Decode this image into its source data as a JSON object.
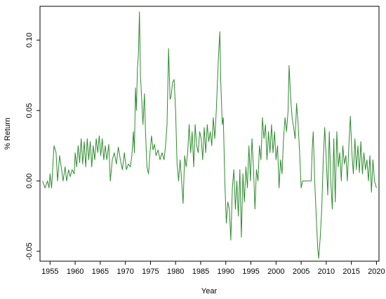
{
  "chart_data": {
    "type": "line",
    "title": "",
    "xlabel": "Year",
    "ylabel": "% Return",
    "xlim": [
      1953,
      2020.5
    ],
    "ylim": [
      -0.057,
      0.124
    ],
    "x_ticks": [
      1955,
      1960,
      1965,
      1970,
      1975,
      1980,
      1985,
      1990,
      1995,
      2000,
      2005,
      2010,
      2015,
      2020
    ],
    "y_ticks": [
      -0.05,
      0.0,
      0.05,
      0.1
    ],
    "y_tick_labels": [
      "-0.05",
      "0.00",
      "0.05",
      "0.10"
    ],
    "grid": false,
    "legend": "none",
    "series": [
      {
        "color": "#2e8b2e",
        "points": [
          [
            1953.5,
            0.0
          ],
          [
            1954.0,
            -0.005
          ],
          [
            1954.5,
            0.0
          ],
          [
            1954.8,
            -0.005
          ],
          [
            1955.0,
            0.005
          ],
          [
            1955.3,
            -0.005
          ],
          [
            1955.8,
            0.025
          ],
          [
            1956.2,
            0.02
          ],
          [
            1956.5,
            0.0
          ],
          [
            1956.9,
            0.018
          ],
          [
            1957.3,
            0.008
          ],
          [
            1957.6,
            0.0
          ],
          [
            1958.0,
            0.01
          ],
          [
            1958.3,
            0.0
          ],
          [
            1958.7,
            0.008
          ],
          [
            1959.0,
            0.003
          ],
          [
            1959.4,
            0.008
          ],
          [
            1959.8,
            0.005
          ],
          [
            1960.0,
            0.02
          ],
          [
            1960.3,
            0.01
          ],
          [
            1960.6,
            0.025
          ],
          [
            1960.9,
            0.013
          ],
          [
            1961.2,
            0.03
          ],
          [
            1961.5,
            0.012
          ],
          [
            1961.8,
            0.028
          ],
          [
            1962.1,
            0.01
          ],
          [
            1962.4,
            0.03
          ],
          [
            1962.7,
            0.015
          ],
          [
            1963.0,
            0.028
          ],
          [
            1963.3,
            0.01
          ],
          [
            1963.6,
            0.025
          ],
          [
            1963.9,
            0.015
          ],
          [
            1964.2,
            0.03
          ],
          [
            1964.5,
            0.02
          ],
          [
            1964.8,
            0.032
          ],
          [
            1965.1,
            0.018
          ],
          [
            1965.4,
            0.03
          ],
          [
            1965.7,
            0.015
          ],
          [
            1966.0,
            0.025
          ],
          [
            1966.3,
            0.015
          ],
          [
            1966.7,
            0.026
          ],
          [
            1967.0,
            0.0
          ],
          [
            1967.4,
            0.015
          ],
          [
            1967.8,
            0.02
          ],
          [
            1968.2,
            0.012
          ],
          [
            1968.6,
            0.024
          ],
          [
            1969.0,
            0.015
          ],
          [
            1969.4,
            0.008
          ],
          [
            1969.8,
            0.02
          ],
          [
            1970.2,
            0.008
          ],
          [
            1970.6,
            0.012
          ],
          [
            1971.0,
            0.01
          ],
          [
            1971.3,
            0.018
          ],
          [
            1971.6,
            0.035
          ],
          [
            1971.8,
            0.02
          ],
          [
            1972.0,
            0.066
          ],
          [
            1972.2,
            0.05
          ],
          [
            1972.4,
            0.08
          ],
          [
            1972.6,
            0.09
          ],
          [
            1972.8,
            0.12
          ],
          [
            1973.0,
            0.075
          ],
          [
            1973.2,
            0.062
          ],
          [
            1973.5,
            0.04
          ],
          [
            1973.8,
            0.062
          ],
          [
            1974.0,
            0.035
          ],
          [
            1974.3,
            0.01
          ],
          [
            1974.6,
            0.005
          ],
          [
            1974.9,
            0.02
          ],
          [
            1975.2,
            0.032
          ],
          [
            1975.5,
            0.022
          ],
          [
            1975.8,
            0.026
          ],
          [
            1976.1,
            0.018
          ],
          [
            1976.5,
            0.022
          ],
          [
            1976.9,
            0.015
          ],
          [
            1977.3,
            0.02
          ],
          [
            1977.7,
            0.015
          ],
          [
            1978.0,
            0.025
          ],
          [
            1978.3,
            0.04
          ],
          [
            1978.6,
            0.094
          ],
          [
            1978.9,
            0.058
          ],
          [
            1979.1,
            0.06
          ],
          [
            1979.4,
            0.07
          ],
          [
            1979.7,
            0.072
          ],
          [
            1980.0,
            0.05
          ],
          [
            1980.3,
            0.012
          ],
          [
            1980.6,
            0.0
          ],
          [
            1980.9,
            0.015
          ],
          [
            1981.2,
            0.0
          ],
          [
            1981.5,
            -0.016
          ],
          [
            1981.8,
            0.018
          ],
          [
            1982.1,
            0.01
          ],
          [
            1982.4,
            0.02
          ],
          [
            1982.7,
            0.04
          ],
          [
            1983.0,
            0.02
          ],
          [
            1983.3,
            0.035
          ],
          [
            1983.6,
            0.01
          ],
          [
            1983.9,
            0.04
          ],
          [
            1984.2,
            0.025
          ],
          [
            1984.5,
            0.02
          ],
          [
            1984.8,
            0.035
          ],
          [
            1985.1,
            0.03
          ],
          [
            1985.4,
            0.015
          ],
          [
            1985.7,
            0.038
          ],
          [
            1986.0,
            0.02
          ],
          [
            1986.3,
            0.04
          ],
          [
            1986.6,
            0.028
          ],
          [
            1986.9,
            0.035
          ],
          [
            1987.2,
            0.025
          ],
          [
            1987.5,
            0.045
          ],
          [
            1987.8,
            0.03
          ],
          [
            1988.1,
            0.05
          ],
          [
            1988.5,
            0.085
          ],
          [
            1988.8,
            0.106
          ],
          [
            1989.0,
            0.07
          ],
          [
            1989.3,
            0.04
          ],
          [
            1989.5,
            0.045
          ],
          [
            1989.8,
            0.0
          ],
          [
            1990.1,
            -0.03
          ],
          [
            1990.4,
            -0.015
          ],
          [
            1990.7,
            -0.02
          ],
          [
            1991.0,
            -0.042
          ],
          [
            1991.3,
            -0.005
          ],
          [
            1991.6,
            0.008
          ],
          [
            1991.9,
            -0.02
          ],
          [
            1992.2,
            0.0
          ],
          [
            1992.5,
            -0.025
          ],
          [
            1992.8,
            0.008
          ],
          [
            1993.1,
            -0.04
          ],
          [
            1993.4,
            0.005
          ],
          [
            1993.7,
            -0.015
          ],
          [
            1994.0,
            0.01
          ],
          [
            1994.3,
            -0.005
          ],
          [
            1994.6,
            0.025
          ],
          [
            1994.9,
            0.0
          ],
          [
            1995.2,
            0.03
          ],
          [
            1995.5,
            0.01
          ],
          [
            1995.8,
            -0.02
          ],
          [
            1996.1,
            0.008
          ],
          [
            1996.4,
            0.0
          ],
          [
            1996.7,
            0.025
          ],
          [
            1997.0,
            0.015
          ],
          [
            1997.3,
            0.045
          ],
          [
            1997.6,
            0.03
          ],
          [
            1997.9,
            0.04
          ],
          [
            1998.2,
            0.015
          ],
          [
            1998.5,
            0.035
          ],
          [
            1998.8,
            0.02
          ],
          [
            1999.1,
            0.04
          ],
          [
            1999.4,
            0.02
          ],
          [
            1999.7,
            0.035
          ],
          [
            2000.0,
            0.015
          ],
          [
            2000.3,
            0.025
          ],
          [
            2000.6,
            -0.005
          ],
          [
            2000.9,
            0.015
          ],
          [
            2001.2,
            0.005
          ],
          [
            2001.5,
            0.03
          ],
          [
            2001.8,
            0.045
          ],
          [
            2002.1,
            0.035
          ],
          [
            2002.4,
            0.05
          ],
          [
            2002.6,
            0.082
          ],
          [
            2002.9,
            0.06
          ],
          [
            2003.2,
            0.045
          ],
          [
            2003.5,
            0.038
          ],
          [
            2003.8,
            0.03
          ],
          [
            2004.1,
            0.055
          ],
          [
            2004.4,
            0.04
          ],
          [
            2004.7,
            0.02
          ],
          [
            2005.0,
            -0.005
          ],
          [
            2005.3,
            0.0
          ],
          [
            2005.6,
            0.0
          ],
          [
            2006.0,
            0.0
          ],
          [
            2006.5,
            0.0
          ],
          [
            2007.0,
            0.0
          ],
          [
            2007.2,
            0.022
          ],
          [
            2007.4,
            0.035
          ],
          [
            2007.7,
            0.0
          ],
          [
            2008.0,
            -0.025
          ],
          [
            2008.3,
            -0.048
          ],
          [
            2008.5,
            -0.055
          ],
          [
            2008.8,
            -0.04
          ],
          [
            2009.1,
            -0.02
          ],
          [
            2009.4,
            0.015
          ],
          [
            2009.7,
            0.038
          ],
          [
            2010.0,
            0.015
          ],
          [
            2010.3,
            -0.01
          ],
          [
            2010.6,
            0.035
          ],
          [
            2010.9,
            0.0
          ],
          [
            2011.2,
            -0.02
          ],
          [
            2011.5,
            0.03
          ],
          [
            2011.8,
            -0.015
          ],
          [
            2012.1,
            0.035
          ],
          [
            2012.4,
            0.01
          ],
          [
            2012.7,
            0.02
          ],
          [
            2013.0,
            0.0
          ],
          [
            2013.3,
            0.025
          ],
          [
            2013.6,
            0.012
          ],
          [
            2013.9,
            0.018
          ],
          [
            2014.2,
            0.0
          ],
          [
            2014.5,
            0.025
          ],
          [
            2014.8,
            0.046
          ],
          [
            2015.1,
            0.02
          ],
          [
            2015.4,
            0.005
          ],
          [
            2015.7,
            0.03
          ],
          [
            2016.0,
            0.008
          ],
          [
            2016.3,
            0.025
          ],
          [
            2016.6,
            0.006
          ],
          [
            2016.9,
            0.028
          ],
          [
            2017.2,
            0.005
          ],
          [
            2017.5,
            0.02
          ],
          [
            2017.8,
            0.008
          ],
          [
            2018.1,
            0.015
          ],
          [
            2018.4,
            0.0
          ],
          [
            2018.7,
            0.018
          ],
          [
            2019.0,
            -0.008
          ],
          [
            2019.3,
            0.015
          ],
          [
            2019.6,
            0.0
          ],
          [
            2020.0,
            -0.005
          ]
        ]
      }
    ]
  }
}
